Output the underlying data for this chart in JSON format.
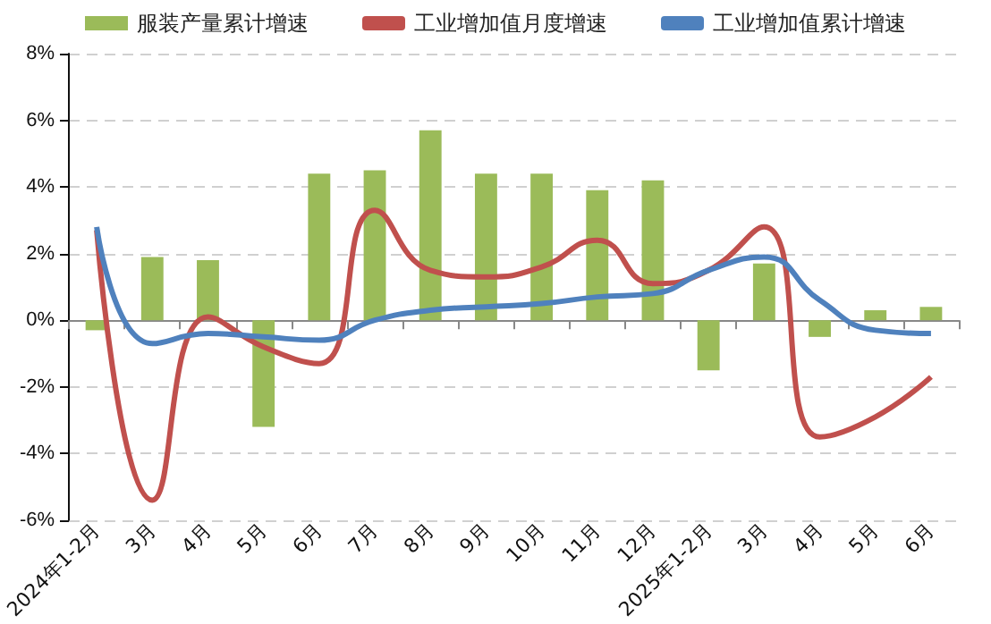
{
  "chart_data": {
    "type": "bar",
    "categories": [
      "2024年1-2月",
      "3月",
      "4月",
      "5月",
      "6月",
      "7月",
      "8月",
      "9月",
      "10月",
      "11月",
      "12月",
      "2025年1-2月",
      "3月",
      "4月",
      "5月",
      "6月"
    ],
    "series": [
      {
        "name": "服装产量累计增速",
        "color": "#9bbb59",
        "values": [
          -0.3,
          1.9,
          1.8,
          -3.2,
          4.4,
          4.5,
          5.7,
          4.4,
          4.4,
          3.9,
          4.2,
          -1.5,
          1.7,
          -0.5,
          0.3,
          0.4
        ]
      },
      {
        "name": "工业增加值月度增速",
        "type": "line",
        "color": "#c0504d",
        "values": [
          2.7,
          -5.4,
          0.1,
          -0.8,
          -1.3,
          3.3,
          1.5,
          1.3,
          1.6,
          2.4,
          1.1,
          1.5,
          2.8,
          -3.5,
          -2.9,
          -1.7
        ]
      },
      {
        "name": "工业增加值累计增速",
        "type": "line",
        "color": "#4f81bd",
        "values": [
          2.8,
          -0.7,
          -0.4,
          -0.5,
          -0.6,
          0.0,
          0.3,
          0.4,
          0.5,
          0.7,
          0.8,
          1.5,
          1.9,
          0.6,
          -0.3,
          -0.4
        ]
      }
    ],
    "ylim": [
      -6,
      8
    ],
    "yticks": [
      {
        "value": -6,
        "label": "-6%"
      },
      {
        "value": -4,
        "label": "-4%"
      },
      {
        "value": -2,
        "label": "-2%"
      },
      {
        "value": 0,
        "label": "0%"
      },
      {
        "value": 2,
        "label": "2%"
      },
      {
        "value": 4,
        "label": "4%"
      },
      {
        "value": 6,
        "label": "6%"
      },
      {
        "value": 8,
        "label": "8%"
      }
    ],
    "grid": "y",
    "legend": "top",
    "marker": "none"
  }
}
